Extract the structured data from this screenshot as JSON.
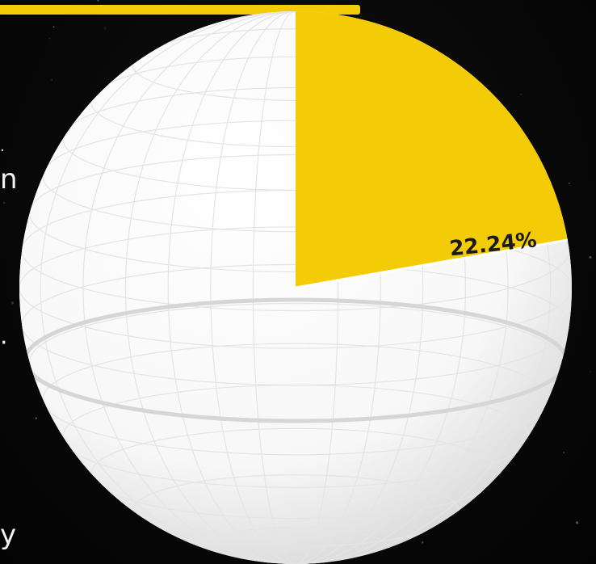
{
  "chart_data": {
    "type": "pie",
    "title": "",
    "slices": [
      {
        "label": "",
        "value": 22.24,
        "display_label": "22.24%",
        "color": "#F4CB07",
        "highlighted": true
      },
      {
        "label": "",
        "value": 77.76,
        "display_label": "",
        "color": "#FFFFFF",
        "highlighted": false
      }
    ],
    "start_angle_deg": 0,
    "direction": "clockwise",
    "style": "3d-sphere-with-grid",
    "legend": "none",
    "background_color": "#070707",
    "accent_color": "#F4CB07"
  },
  "decor": {
    "left_edge_text_fragments": [
      "n",
      "y"
    ]
  }
}
